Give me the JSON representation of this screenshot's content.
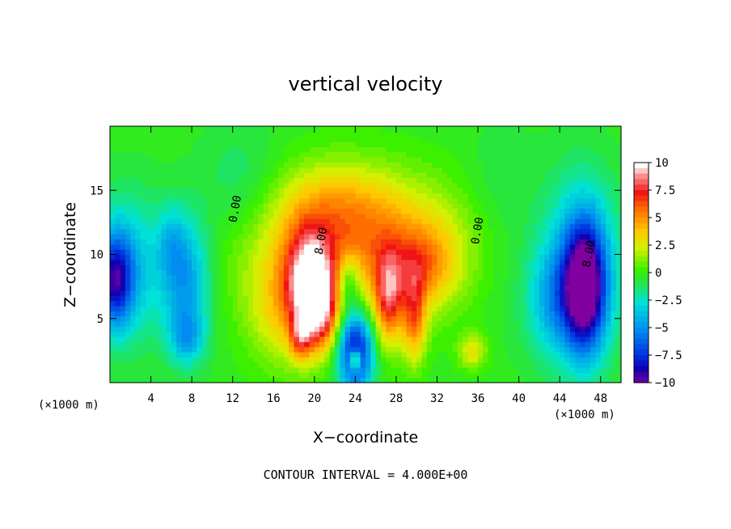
{
  "chart_data": {
    "type": "heatmap",
    "title": "vertical velocity",
    "xlabel": "X−coordinate",
    "ylabel": "Z−coordinate",
    "x_unit_left": "(×1000 m)",
    "x_unit_right": "(×1000 m)",
    "xlim": [
      0,
      50
    ],
    "ylim": [
      0,
      20
    ],
    "x_ticks": [
      4,
      8,
      12,
      16,
      20,
      24,
      28,
      32,
      36,
      40,
      44,
      48
    ],
    "x_tick_labels": [
      "4",
      "8",
      "12",
      "16",
      "20",
      "24",
      "28",
      "32",
      "36",
      "40",
      "44",
      "48"
    ],
    "y_ticks": [
      5,
      10,
      15
    ],
    "y_tick_labels": [
      "5",
      "10",
      "15"
    ],
    "colorbar": {
      "min": -10,
      "max": 10,
      "tick_values": [
        10,
        7.5,
        5,
        2.5,
        0,
        -2.5,
        -5,
        -7.5,
        -10
      ],
      "tick_labels": [
        "10",
        "7.5",
        "5",
        "2.5",
        "0",
        "−2.5",
        "−5",
        "−7.5",
        "−10"
      ]
    },
    "contour_labels": [
      {
        "text": "0.00",
        "x": 12.6,
        "z": 13.5
      },
      {
        "text": "8.00",
        "x": 21.0,
        "z": 11.0
      },
      {
        "text": "0.00",
        "x": 36.3,
        "z": 11.8
      },
      {
        "text": "8.00",
        "x": 47.2,
        "z": 10.0
      }
    ],
    "features": [
      {
        "x": 25.0,
        "z": 10.5,
        "sx": 8.0,
        "sz": 3.5,
        "w": 5.0
      },
      {
        "x": 22.0,
        "z": 14.0,
        "sx": 4.5,
        "sz": 2.5,
        "w": 2.5
      },
      {
        "x": 19.5,
        "z": 8.0,
        "sx": 1.6,
        "sz": 2.8,
        "w": 7.0
      },
      {
        "x": 20.5,
        "z": 5.5,
        "sx": 1.3,
        "sz": 2.2,
        "w": 6.0
      },
      {
        "x": 18.6,
        "z": 3.5,
        "sx": 0.7,
        "sz": 1.2,
        "w": 4.0
      },
      {
        "x": 27.3,
        "z": 6.5,
        "sx": 1.0,
        "sz": 2.5,
        "w": 6.0
      },
      {
        "x": 29.8,
        "z": 5.0,
        "sx": 0.8,
        "sz": 2.4,
        "w": 5.0
      },
      {
        "x": 30.5,
        "z": 9.0,
        "sx": 2.0,
        "sz": 2.0,
        "w": 3.0
      },
      {
        "x": 17.0,
        "z": 5.5,
        "sx": 2.5,
        "sz": 3.0,
        "w": 3.0
      },
      {
        "x": 35.5,
        "z": 2.5,
        "sx": 1.0,
        "sz": 1.0,
        "w": 3.0
      },
      {
        "x": 24.0,
        "z": 2.5,
        "sx": 1.2,
        "sz": 2.2,
        "w": -9.0
      },
      {
        "x": 24.0,
        "z": 1.8,
        "sx": 0.4,
        "sz": 0.6,
        "w": 7.0
      },
      {
        "x": 23.3,
        "z": 8.0,
        "sx": 0.8,
        "sz": 1.5,
        "w": -3.5
      },
      {
        "x": 46.5,
        "z": 7.5,
        "sx": 1.4,
        "sz": 3.5,
        "w": -9.0
      },
      {
        "x": 46.0,
        "z": 9.0,
        "sx": 2.8,
        "sz": 5.0,
        "w": -4.0
      },
      {
        "x": 43.5,
        "z": 6.5,
        "sx": 2.0,
        "sz": 3.0,
        "w": -3.0
      },
      {
        "x": 0.5,
        "z": 8.0,
        "sx": 1.2,
        "sz": 2.5,
        "w": -6.5
      },
      {
        "x": 1.8,
        "z": 9.0,
        "sx": 2.5,
        "sz": 4.0,
        "w": -3.5
      },
      {
        "x": 7.5,
        "z": 8.0,
        "sx": 1.7,
        "sz": 3.5,
        "w": -4.5
      },
      {
        "x": 7.5,
        "z": 3.5,
        "sx": 1.2,
        "sz": 1.5,
        "w": -3.0
      },
      {
        "x": 6.0,
        "z": 11.0,
        "sx": 1.0,
        "sz": 2.0,
        "w": -2.0
      },
      {
        "x": 13.0,
        "z": 15.0,
        "sx": 3.0,
        "sz": 3.5,
        "w": -1.5
      },
      {
        "x": 38.0,
        "z": 12.0,
        "sx": 2.5,
        "sz": 5.0,
        "w": -1.2
      }
    ],
    "contour_interval_text": "CONTOUR INTERVAL = 4.000E+00"
  }
}
